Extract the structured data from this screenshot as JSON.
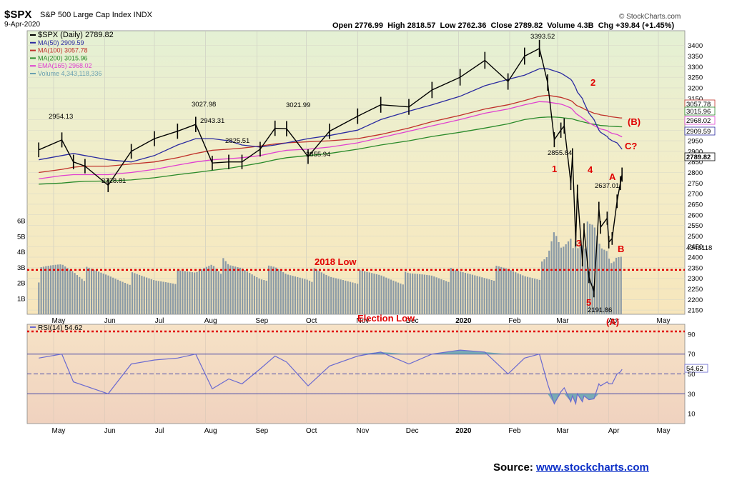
{
  "header": {
    "symbol": "$SPX",
    "name": "S&P 500 Large Cap Index INDX",
    "date": "9-Apr-2020",
    "watermark": "© StockCharts.com",
    "ohlc": {
      "open_label": "Open",
      "open": "2776.99",
      "high_label": "High",
      "high": "2818.57",
      "low_label": "Low",
      "low": "2762.36",
      "close_label": "Close",
      "close": "2789.82",
      "volume_label": "Volume",
      "volume": "4.3B",
      "chg_label": "Chg",
      "chg": "+39.84 (+1.45%)"
    }
  },
  "legend": [
    {
      "text": "$SPX (Daily) 2789.82",
      "color": "#000000"
    },
    {
      "text": "MA(50) 2909.59",
      "color": "#2a2aa0"
    },
    {
      "text": "MA(100) 3057.78",
      "color": "#c0302a"
    },
    {
      "text": "MA(200) 3015.96",
      "color": "#2a8a2a"
    },
    {
      "text": "EMA(165) 2968.02",
      "color": "#e040d0"
    },
    {
      "text": "Volume 4,343,118,336",
      "color": "#6aa0b0"
    }
  ],
  "colors": {
    "price_bg": "#f2eccb",
    "rsi_bg": "#f3dcc4",
    "ma50": "#2a2aa0",
    "ma100": "#c0302a",
    "ma200": "#2a8a2a",
    "ema165": "#e040d0",
    "volume": "#8a9aa6",
    "annotation": "#e00000",
    "rsi_line": "#6a6ad0",
    "rsi_fill": "#5aa0b0"
  },
  "source": {
    "label": "Source: ",
    "link": "www.stockcharts.com"
  },
  "chart_data": [
    {
      "type": "line",
      "panel": "price",
      "x": [
        "2019-04-22",
        "2019-05-06",
        "2019-05-13",
        "2019-05-20",
        "2019-06-03",
        "2019-06-17",
        "2019-07-01",
        "2019-07-15",
        "2019-07-26",
        "2019-08-05",
        "2019-08-15",
        "2019-08-23",
        "2019-09-03",
        "2019-09-12",
        "2019-09-19",
        "2019-10-02",
        "2019-10-15",
        "2019-11-01",
        "2019-11-15",
        "2019-12-02",
        "2019-12-16",
        "2020-01-02",
        "2020-01-17",
        "2020-01-31",
        "2020-02-10",
        "2020-02-19",
        "2020-02-24",
        "2020-02-28",
        "2020-03-03",
        "2020-03-05",
        "2020-03-09",
        "2020-03-10",
        "2020-03-12",
        "2020-03-13",
        "2020-03-16",
        "2020-03-17",
        "2020-03-20",
        "2020-03-23",
        "2020-03-26",
        "2020-03-27",
        "2020-03-31",
        "2020-04-01",
        "2020-04-03",
        "2020-04-06",
        "2020-04-08",
        "2020-04-09"
      ],
      "close": [
        2907,
        2954,
        2850,
        2830,
        2740,
        2900,
        2960,
        2995,
        3027,
        2845,
        2850,
        2850,
        2910,
        3009,
        3007,
        2875,
        2995,
        3066,
        3120,
        3110,
        3190,
        3250,
        3330,
        3230,
        3350,
        3386,
        3225,
        2955,
        3000,
        3020,
        2750,
        2880,
        2480,
        2710,
        2385,
        2530,
        2305,
        2237,
        2630,
        2541,
        2584,
        2471,
        2488,
        2664,
        2750,
        2790
      ],
      "ma50": [
        2860,
        2880,
        2890,
        2880,
        2860,
        2850,
        2880,
        2930,
        2960,
        2960,
        2950,
        2930,
        2920,
        2930,
        2940,
        2960,
        2975,
        3000,
        3050,
        3090,
        3120,
        3160,
        3210,
        3240,
        3260,
        3290,
        3290,
        3280,
        3270,
        3260,
        3240,
        3230,
        3200,
        3180,
        3150,
        3130,
        3080,
        3050,
        3000,
        2990,
        2970,
        2960,
        2950,
        2940,
        2920,
        2910
      ],
      "ma100": [
        2800,
        2815,
        2825,
        2830,
        2830,
        2840,
        2850,
        2870,
        2890,
        2905,
        2910,
        2915,
        2925,
        2935,
        2940,
        2945,
        2950,
        2960,
        2980,
        3010,
        3040,
        3070,
        3100,
        3120,
        3140,
        3160,
        3165,
        3160,
        3155,
        3150,
        3140,
        3135,
        3120,
        3115,
        3105,
        3100,
        3090,
        3080,
        3075,
        3072,
        3068,
        3065,
        3063,
        3060,
        3058,
        3057.78
      ],
      "ma200": [
        2745,
        2750,
        2755,
        2758,
        2760,
        2765,
        2775,
        2790,
        2800,
        2810,
        2820,
        2830,
        2845,
        2860,
        2870,
        2880,
        2890,
        2910,
        2930,
        2950,
        2970,
        2990,
        3010,
        3030,
        3050,
        3060,
        3062,
        3062,
        3060,
        3058,
        3055,
        3053,
        3048,
        3046,
        3040,
        3038,
        3032,
        3028,
        3024,
        3022,
        3020,
        3019,
        3018,
        3017,
        3016,
        3015.96
      ],
      "ema165": [
        2770,
        2785,
        2790,
        2790,
        2790,
        2800,
        2815,
        2835,
        2850,
        2860,
        2865,
        2870,
        2880,
        2895,
        2905,
        2910,
        2920,
        2940,
        2965,
        2995,
        3020,
        3050,
        3080,
        3100,
        3120,
        3135,
        3133,
        3128,
        3123,
        3118,
        3105,
        3098,
        3080,
        3074,
        3058,
        3052,
        3035,
        3022,
        3010,
        3006,
        2998,
        2992,
        2985,
        2980,
        2972,
        2968.02
      ],
      "volume_billions": [
        2.5,
        3.2,
        3.0,
        2.6,
        2.5,
        2.3,
        2.2,
        2.4,
        2.6,
        3.6,
        2.8,
        2.9,
        2.6,
        2.7,
        2.5,
        2.6,
        2.3,
        2.4,
        2.5,
        2.3,
        2.6,
        2.5,
        2.6,
        2.7,
        2.6,
        2.7,
        3.3,
        5.0,
        4.2,
        4.4,
        5.2,
        4.5,
        5.3,
        4.8,
        5.3,
        5.2,
        5.0,
        5.1,
        4.3,
        4.0,
        4.0,
        3.6,
        3.3,
        4.0,
        4.0,
        4.34
      ],
      "y_ticks": [
        3400,
        3350,
        3300,
        3250,
        3200,
        3150,
        3100,
        3050,
        3000,
        2950,
        2900,
        2850,
        2800,
        2750,
        2700,
        2650,
        2600,
        2550,
        2500,
        2450,
        2400,
        2350,
        2300,
        2250,
        2200,
        2150
      ],
      "ylim": [
        2130,
        3470
      ],
      "volume_ticks": [
        "1B",
        "2B",
        "3B",
        "4B",
        "5B",
        "6B"
      ],
      "x_ticks": [
        "May",
        "Jun",
        "Jul",
        "Aug",
        "Sep",
        "Oct",
        "Nov",
        "Dec",
        "2020",
        "Feb",
        "Mar",
        "Apr",
        "May"
      ],
      "right_labels": [
        "3057.78",
        "3015.96",
        "2968.02",
        "2909.59",
        "2789.82",
        "4343118"
      ],
      "data_labels": [
        "2954.13",
        "2728.81",
        "3027.98",
        "2943.31",
        "2825.51",
        "3021.99",
        "2855.94",
        "3393.52",
        "2855.84",
        "2637.01",
        "2191.86"
      ],
      "annotations": [
        "2018 Low",
        "Election Low",
        "1",
        "2",
        "3",
        "4",
        "5",
        "A",
        "B",
        "C?",
        "(B)",
        "(A)"
      ]
    },
    {
      "type": "line",
      "panel": "rsi",
      "legend": "RSI(14) 54.62",
      "x": [
        "2019-04-22",
        "2019-05-06",
        "2019-05-13",
        "2019-05-20",
        "2019-06-03",
        "2019-06-17",
        "2019-07-01",
        "2019-07-15",
        "2019-07-26",
        "2019-08-05",
        "2019-08-15",
        "2019-08-23",
        "2019-09-03",
        "2019-09-12",
        "2019-09-19",
        "2019-10-02",
        "2019-10-15",
        "2019-11-01",
        "2019-11-15",
        "2019-12-02",
        "2019-12-16",
        "2020-01-02",
        "2020-01-17",
        "2020-01-31",
        "2020-02-10",
        "2020-02-19",
        "2020-02-24",
        "2020-02-28",
        "2020-03-03",
        "2020-03-05",
        "2020-03-09",
        "2020-03-10",
        "2020-03-12",
        "2020-03-13",
        "2020-03-16",
        "2020-03-17",
        "2020-03-20",
        "2020-03-23",
        "2020-03-26",
        "2020-03-27",
        "2020-03-31",
        "2020-04-01",
        "2020-04-03",
        "2020-04-06",
        "2020-04-08",
        "2020-04-09"
      ],
      "values": [
        66,
        70,
        42,
        38,
        30,
        60,
        64,
        66,
        70,
        35,
        45,
        40,
        55,
        68,
        62,
        38,
        58,
        68,
        72,
        60,
        70,
        74,
        72,
        50,
        66,
        70,
        40,
        20,
        32,
        36,
        22,
        28,
        20,
        30,
        22,
        28,
        24,
        25,
        40,
        38,
        42,
        40,
        40,
        50,
        52,
        54.62
      ],
      "y_ticks": [
        90,
        70,
        50,
        30,
        10
      ],
      "ylim": [
        0,
        100
      ],
      "reference_lines": [
        70,
        50,
        30
      ],
      "right_labels": [
        "54.62"
      ]
    }
  ]
}
